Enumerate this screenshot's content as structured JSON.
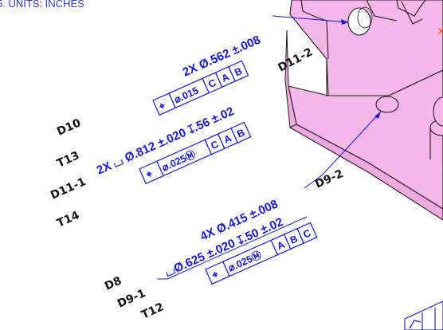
{
  "header": {
    "units_note": "5.  UNITS: INCHES"
  },
  "colors": {
    "part": "#f5b7e9",
    "annotation": "#1414e6",
    "edge": "#1b1b1b",
    "marker": "#ff5a1e"
  },
  "callouts": {
    "hole_top": {
      "size": "2X Ø.562 ±.008",
      "fcf": [
        "⌖",
        "⌀.015",
        "C",
        "A",
        "B"
      ]
    },
    "cbore_left": {
      "size": "2X ⌴ Ø.812 ±.020 ↧.56 ±.02",
      "fcf": [
        "⌖",
        "⌀.025Ⓜ",
        "C",
        "A",
        "B"
      ]
    },
    "holes_bottom": {
      "size": "4X Ø.415 ±.008",
      "cbore": "⌴Ø.625 ±.020 ↧.50 ±.02",
      "fcf": [
        "⌖",
        "⌀.025Ⓜ",
        "A",
        "B",
        "C"
      ]
    }
  },
  "refs": {
    "d10": "D10",
    "t13": "T13",
    "d11_1": "D11-1",
    "t14": "T14",
    "d11_2": "D11-2",
    "d9_2": "D9-2",
    "d8": "D8",
    "d9_1": "D9-1",
    "t12": "T12"
  }
}
